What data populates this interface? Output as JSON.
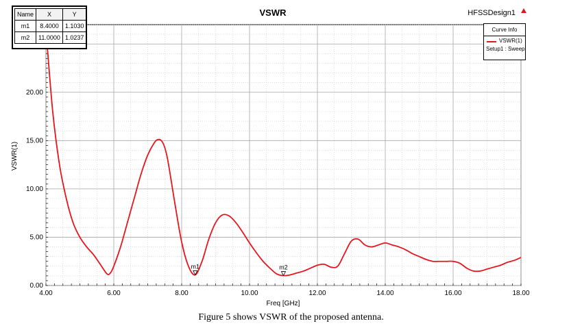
{
  "chart_data": {
    "type": "line",
    "title": "VSWR",
    "project_name": "HFSSDesign1",
    "xlabel": "Freq [GHz]",
    "ylabel": "VSWR(1)",
    "xlim": [
      4.0,
      18.0
    ],
    "ylim": [
      0.0,
      27.0
    ],
    "x_ticks": [
      "4.00",
      "6.00",
      "8.00",
      "10.00",
      "12.00",
      "14.00",
      "16.00",
      "18.00"
    ],
    "y_ticks": [
      "0.00",
      "5.00",
      "10.00",
      "15.00",
      "20.00",
      "25.00"
    ],
    "x_tick_values": [
      4,
      6,
      8,
      10,
      12,
      14,
      16,
      18
    ],
    "y_tick_values": [
      0,
      5,
      10,
      15,
      20,
      25
    ],
    "grid": true,
    "legend": "top-right",
    "series": [
      {
        "name": "VSWR(1)",
        "color": "#e8141c",
        "x": [
          4.0,
          4.2,
          4.4,
          4.6,
          4.8,
          5.0,
          5.2,
          5.4,
          5.6,
          5.8,
          5.9,
          6.0,
          6.2,
          6.4,
          6.6,
          6.8,
          7.0,
          7.2,
          7.3,
          7.4,
          7.5,
          7.6,
          7.8,
          8.0,
          8.2,
          8.4,
          8.6,
          8.8,
          9.0,
          9.2,
          9.4,
          9.6,
          9.8,
          10.0,
          10.2,
          10.4,
          10.6,
          10.8,
          11.0,
          11.2,
          11.4,
          11.6,
          11.8,
          12.0,
          12.2,
          12.4,
          12.6,
          12.8,
          13.0,
          13.2,
          13.4,
          13.6,
          13.8,
          14.0,
          14.2,
          14.4,
          14.6,
          14.8,
          15.0,
          15.2,
          15.4,
          15.6,
          15.8,
          16.0,
          16.2,
          16.4,
          16.6,
          16.8,
          17.0,
          17.2,
          17.4,
          17.6,
          17.8,
          18.0
        ],
        "y": [
          26.5,
          18.0,
          12.5,
          9.0,
          6.5,
          5.0,
          4.0,
          3.2,
          2.2,
          1.2,
          1.3,
          2.0,
          4.0,
          6.5,
          9.0,
          11.5,
          13.5,
          14.8,
          15.1,
          15.0,
          14.3,
          12.8,
          8.5,
          4.5,
          2.0,
          1.1,
          2.5,
          4.8,
          6.5,
          7.3,
          7.2,
          6.5,
          5.5,
          4.4,
          3.4,
          2.5,
          1.8,
          1.2,
          1.02,
          1.1,
          1.3,
          1.5,
          1.8,
          2.1,
          2.2,
          1.9,
          2.0,
          3.3,
          4.6,
          4.8,
          4.2,
          4.0,
          4.2,
          4.4,
          4.2,
          4.0,
          3.7,
          3.3,
          3.0,
          2.7,
          2.5,
          2.5,
          2.5,
          2.5,
          2.3,
          1.8,
          1.5,
          1.5,
          1.7,
          1.9,
          2.1,
          2.4,
          2.6,
          2.9
        ]
      }
    ],
    "markers": [
      {
        "name": "m1",
        "x": 8.4,
        "y": 1.103
      },
      {
        "name": "m2",
        "x": 11.0,
        "y": 1.0237
      }
    ]
  },
  "marker_table": {
    "headers": [
      "Name",
      "X",
      "Y"
    ],
    "rows": [
      [
        "m1",
        "8.4000",
        "1.1030"
      ],
      [
        "m2",
        "11.0000",
        "1.0237"
      ]
    ]
  },
  "legend": {
    "header": "Curve Info",
    "entry": "VSWR(1)",
    "setup": "Setup1 : Sweep"
  },
  "caption": "Figure 5 shows VSWR of the proposed antenna."
}
